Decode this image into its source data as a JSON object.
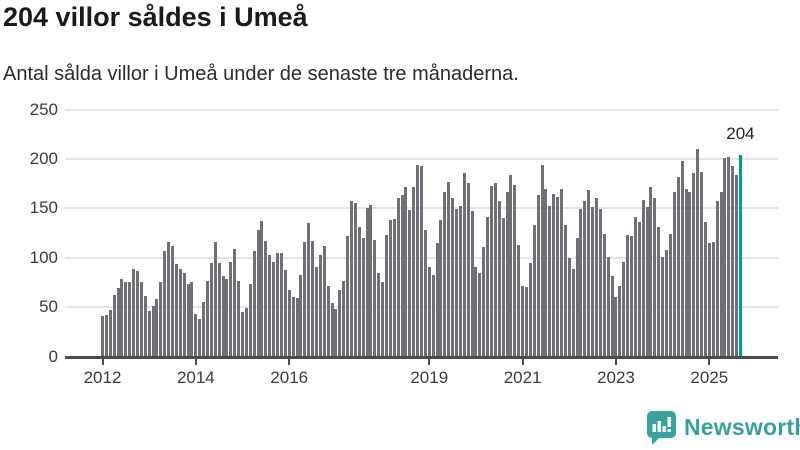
{
  "header": {
    "title": "204 villor såldes i Umeå",
    "subtitle": "Antal sålda villor i Umeå under de senaste tre månaderna."
  },
  "chart_data": {
    "type": "bar",
    "title": "204 villor såldes i Umeå",
    "subtitle": "Antal sålda villor i Umeå under de senaste tre månaderna.",
    "ylabel": "",
    "xlabel": "",
    "ylim": [
      0,
      250
    ],
    "grid": "horizontal",
    "x_range_years": [
      "2012",
      "2025"
    ],
    "x_unit": "month",
    "y_ticks": [
      0,
      50,
      100,
      150,
      200,
      250
    ],
    "x_ticks": [
      {
        "label": "2012",
        "month_index": 0
      },
      {
        "label": "2014",
        "month_index": 24
      },
      {
        "label": "2016",
        "month_index": 48
      },
      {
        "label": "2019",
        "month_index": 84
      },
      {
        "label": "2021",
        "month_index": 108
      },
      {
        "label": "2023",
        "month_index": 132
      },
      {
        "label": "2025",
        "month_index": 156
      }
    ],
    "values": [
      41,
      42,
      47,
      62,
      69,
      78,
      75,
      75,
      89,
      87,
      75,
      61,
      46,
      51,
      58,
      75,
      107,
      116,
      112,
      94,
      89,
      85,
      73,
      75,
      43,
      38,
      55,
      76,
      95,
      116,
      95,
      81,
      78,
      96,
      109,
      76,
      45,
      49,
      73,
      107,
      128,
      137,
      117,
      103,
      96,
      105,
      105,
      88,
      67,
      60,
      59,
      82,
      116,
      135,
      117,
      91,
      103,
      112,
      71,
      54,
      48,
      67,
      76,
      122,
      157,
      155,
      131,
      120,
      150,
      153,
      118,
      85,
      75,
      123,
      138,
      139,
      160,
      163,
      172,
      148,
      172,
      194,
      193,
      128,
      91,
      82,
      115,
      138,
      167,
      177,
      160,
      149,
      152,
      186,
      176,
      147,
      91,
      85,
      111,
      141,
      173,
      176,
      157,
      140,
      166,
      184,
      174,
      113,
      71,
      70,
      95,
      133,
      163,
      194,
      170,
      152,
      164,
      161,
      170,
      133,
      100,
      89,
      120,
      149,
      157,
      169,
      151,
      160,
      149,
      124,
      101,
      81,
      60,
      71,
      96,
      123,
      122,
      141,
      136,
      158,
      151,
      172,
      160,
      131,
      101,
      108,
      124,
      167,
      182,
      198,
      170,
      166,
      186,
      210,
      187,
      136,
      115,
      116,
      157,
      167,
      201,
      202,
      193,
      184,
      204
    ],
    "highlight_index": 164,
    "highlight_value": 204,
    "annotation_label": "204",
    "colors": {
      "bar": "#6f6f75",
      "highlight": "#009aa1",
      "gridline": "#e4e4e4",
      "axis": "#4b4b4d"
    }
  },
  "footer": {
    "brand": "Newsworthy",
    "brand_color": "#38a09c"
  }
}
